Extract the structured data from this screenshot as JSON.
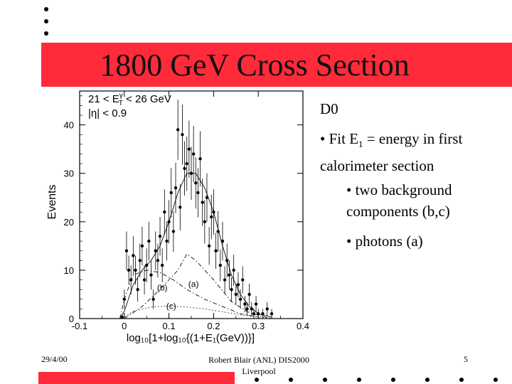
{
  "slide": {
    "title": "1800 GeV Cross Section",
    "experiment": "D0",
    "bullets": {
      "fit_prefix": "• Fit E",
      "fit_sub": "1",
      "fit_suffix": " = energy in first calorimeter section",
      "background": "• two background components (b,c)",
      "photons": "• photons (a)"
    },
    "footer": {
      "date": "29/4/00",
      "author": "Robert Blair (ANL) DIS2000 Liverpool",
      "page": "5"
    },
    "colors": {
      "accent": "#ff2a3a"
    }
  },
  "chart_data": {
    "type": "scatter",
    "cut_line1": "21 < E",
    "cut_line1_sup": "γ",
    "cut_line1_sub": "T",
    "cut_line1_end": " < 26 GeV",
    "cut_line2": "|η| < 0.9",
    "ylabel": "Events",
    "xlabel": "log₁₀[1+log₁₀{(1+E₁(GeV))}]",
    "xlim": [
      -0.1,
      0.4
    ],
    "ylim": [
      0,
      47
    ],
    "xticks": [
      -0.1,
      0,
      0.1,
      0.2,
      0.3,
      0.4
    ],
    "xtick_labels": [
      "-0.1",
      "0",
      "0.1",
      "0.2",
      "0.3",
      "0.4"
    ],
    "yticks": [
      0,
      10,
      20,
      30,
      40
    ],
    "ytick_labels": [
      "0",
      "10",
      "20",
      "30",
      "40"
    ],
    "component_labels": [
      {
        "text": "(a)",
        "x": 0.155,
        "y": 6.5
      },
      {
        "text": "(b)",
        "x": 0.085,
        "y": 5.8
      },
      {
        "text": "(c)",
        "x": 0.105,
        "y": 2.0
      }
    ],
    "points": {
      "x": [
        -0.005,
        0.0,
        0.005,
        0.01,
        0.015,
        0.02,
        0.025,
        0.03,
        0.035,
        0.04,
        0.045,
        0.05,
        0.055,
        0.06,
        0.065,
        0.07,
        0.075,
        0.08,
        0.085,
        0.09,
        0.095,
        0.1,
        0.105,
        0.11,
        0.115,
        0.12,
        0.125,
        0.13,
        0.135,
        0.14,
        0.145,
        0.15,
        0.155,
        0.16,
        0.165,
        0.17,
        0.175,
        0.18,
        0.185,
        0.19,
        0.195,
        0.2,
        0.205,
        0.21,
        0.215,
        0.22,
        0.225,
        0.23,
        0.235,
        0.24,
        0.245,
        0.25,
        0.255,
        0.26,
        0.265,
        0.27,
        0.275,
        0.28,
        0.285,
        0.29,
        0.295,
        0.3,
        0.31,
        0.32,
        0.33
      ],
      "y": [
        0.3,
        4,
        14,
        10,
        8,
        13,
        10,
        6,
        12,
        15,
        8,
        11,
        16,
        9,
        4,
        14,
        12,
        17,
        11,
        22,
        16,
        20,
        26,
        18,
        27,
        39,
        23,
        38,
        31,
        32,
        35,
        30,
        34,
        28,
        26,
        33,
        24,
        20,
        25,
        15,
        21,
        22,
        14,
        18,
        11,
        16,
        8,
        12,
        9,
        6,
        10,
        5,
        7,
        4,
        8,
        3,
        2,
        5,
        2,
        1,
        3,
        1,
        1,
        2,
        1
      ],
      "err": [
        0.6,
        2,
        4,
        3,
        3,
        4,
        3,
        2.5,
        3.5,
        4,
        3,
        3.5,
        4,
        3,
        2,
        4,
        3.5,
        4,
        3.5,
        4.7,
        4,
        4.5,
        5.1,
        4.2,
        5.2,
        6.2,
        4.8,
        6.2,
        5.6,
        5.6,
        5.9,
        5.5,
        5.8,
        5.3,
        5.1,
        5.7,
        4.9,
        4.5,
        5,
        3.9,
        4.6,
        4.7,
        3.7,
        4.2,
        3.3,
        4,
        2.8,
        3.5,
        3,
        2.5,
        3.2,
        2.2,
        2.6,
        2,
        2.8,
        1.7,
        1.4,
        2.2,
        1.4,
        1,
        1.7,
        1,
        1,
        1.4,
        1
      ]
    },
    "curves": [
      {
        "name": "total",
        "style": "solid",
        "x": [
          -0.01,
          0.0,
          0.02,
          0.04,
          0.06,
          0.08,
          0.1,
          0.12,
          0.14,
          0.16,
          0.18,
          0.2,
          0.22,
          0.24,
          0.26,
          0.28,
          0.3,
          0.33
        ],
        "y": [
          0,
          1.5,
          7,
          10,
          12,
          15,
          20,
          26,
          30,
          30,
          27,
          22,
          15,
          9,
          5,
          2.5,
          1,
          0.3
        ]
      },
      {
        "name": "(a)",
        "style": "dashdot",
        "x": [
          0.0,
          0.04,
          0.08,
          0.12,
          0.14,
          0.16,
          0.2,
          0.24,
          0.28,
          0.32
        ],
        "y": [
          0,
          2.5,
          6,
          10,
          13.3,
          12,
          8,
          3.5,
          1.2,
          0.2
        ]
      },
      {
        "name": "(b)",
        "style": "dashdot",
        "x": [
          -0.01,
          0.0,
          0.02,
          0.05,
          0.08,
          0.11,
          0.14,
          0.18,
          0.22,
          0.26,
          0.3
        ],
        "y": [
          0,
          4,
          9,
          10,
          9.5,
          8,
          6,
          4,
          2.5,
          1,
          0.3
        ]
      },
      {
        "name": "(c)",
        "style": "dotted",
        "x": [
          -0.005,
          0.02,
          0.06,
          0.1,
          0.14,
          0.18,
          0.22,
          0.26,
          0.3,
          0.33
        ],
        "y": [
          0,
          1.5,
          2.4,
          2.6,
          2.4,
          2,
          1.4,
          0.8,
          0.3,
          0.1
        ]
      }
    ]
  }
}
